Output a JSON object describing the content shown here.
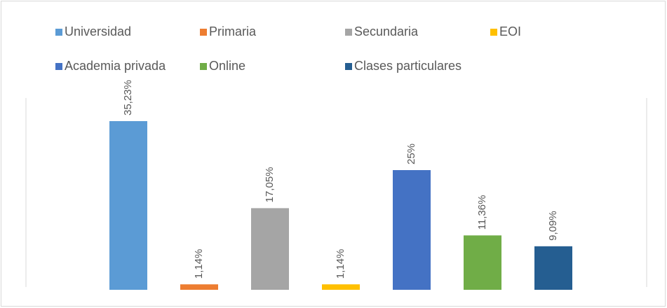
{
  "chart_data": {
    "type": "bar",
    "series": [
      {
        "name": "Universidad",
        "color": "#5b9bd5",
        "values": [
          35.23
        ],
        "value_labels": [
          "35,23%"
        ]
      },
      {
        "name": "Primaria",
        "color": "#ed7d31",
        "values": [
          1.14
        ],
        "value_labels": [
          "1,14%"
        ]
      },
      {
        "name": "Secundaria",
        "color": "#a5a5a5",
        "values": [
          17.05
        ],
        "value_labels": [
          "17,05%"
        ]
      },
      {
        "name": "EOI",
        "color": "#ffc000",
        "values": [
          1.14
        ],
        "value_labels": [
          "1,14%"
        ]
      },
      {
        "name": "Academia privada",
        "color": "#4472c4",
        "values": [
          25
        ],
        "value_labels": [
          "25%"
        ]
      },
      {
        "name": "Online",
        "color": "#70ad47",
        "values": [
          11.36
        ],
        "value_labels": [
          "11,36%"
        ]
      },
      {
        "name": "Clases particulares",
        "color": "#255e91",
        "values": [
          9.09
        ],
        "value_labels": [
          "9,09%"
        ]
      }
    ]
  }
}
